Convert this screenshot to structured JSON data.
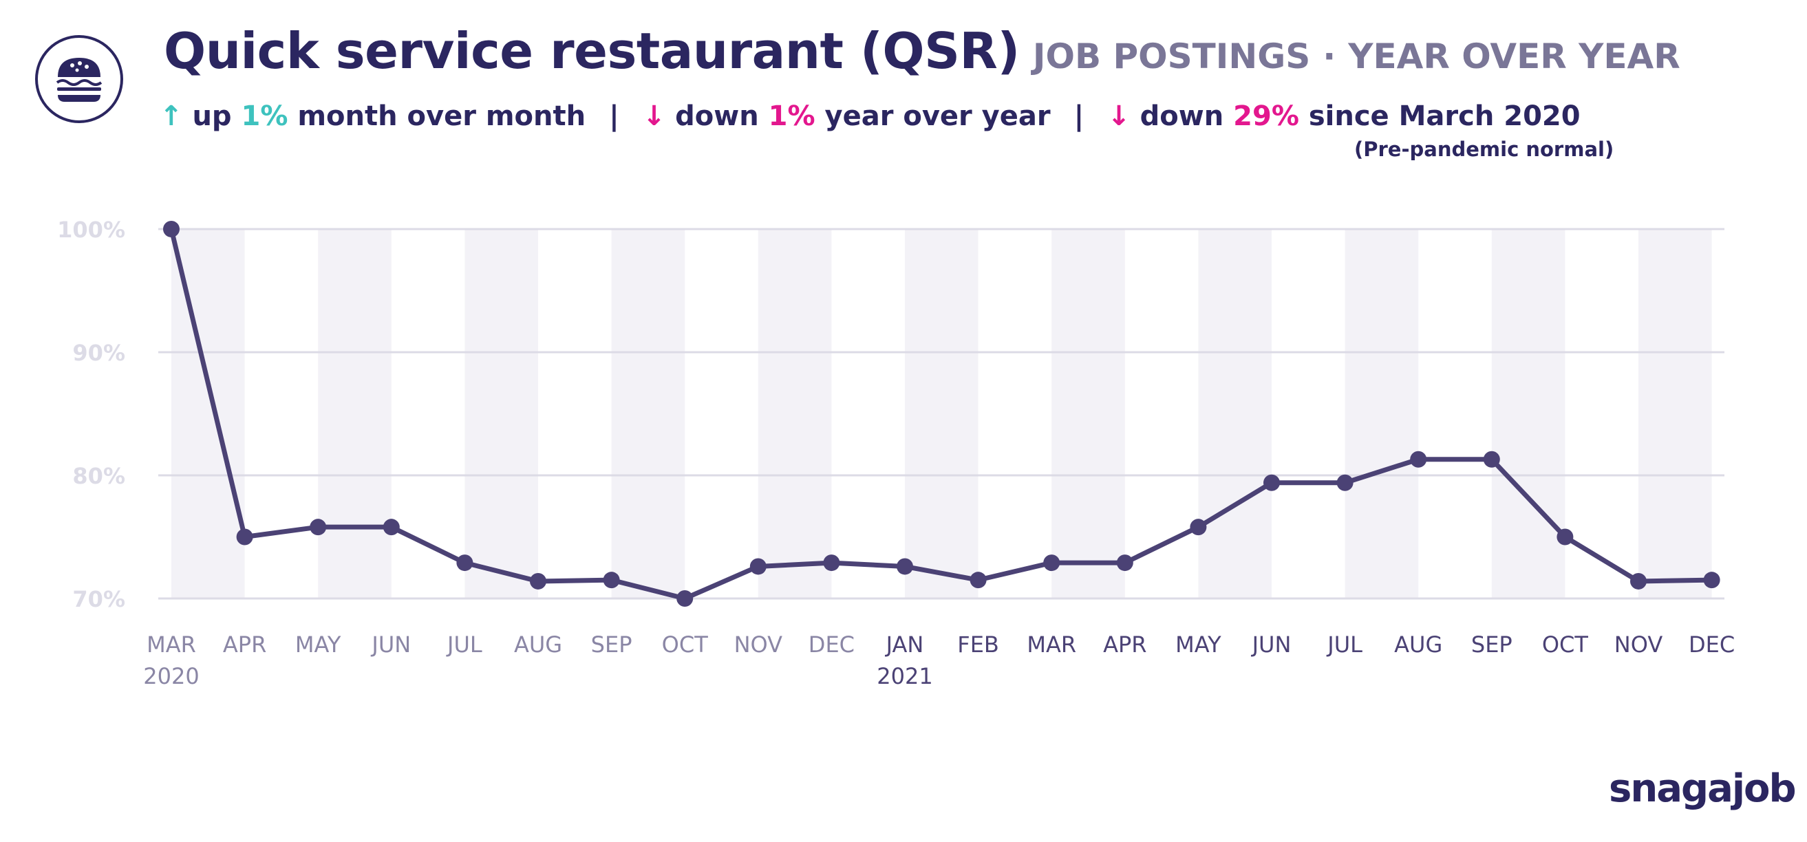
{
  "header": {
    "title": "Quick service restaurant (QSR)",
    "subtitle_1": "JOB POSTINGS",
    "subtitle_dot": "·",
    "subtitle_2": "YEAR OVER YEAR",
    "icon": "burger-icon"
  },
  "stats": {
    "mom": {
      "arrow": "↑",
      "pre": "up",
      "value": "1%",
      "post": "month over month"
    },
    "yoy": {
      "arrow": "↓",
      "pre": "down",
      "value": "1%",
      "post": "year over year"
    },
    "since": {
      "arrow": "↓",
      "pre": "down",
      "value": "29%",
      "post": "since March 2020"
    },
    "separator": "|",
    "note": "(Pre-pandemic normal)"
  },
  "colors": {
    "line": "#4b4275",
    "up": "#3ec2be",
    "down": "#e3178e",
    "band": "#f3f2f7",
    "grid": "#dcdbe6",
    "tick_light": "#dcdbe6",
    "month_old": "#8a86a5",
    "month_new": "#4b4275"
  },
  "chart_data": {
    "type": "line",
    "categories": [
      "MAR",
      "APR",
      "MAY",
      "JUN",
      "JUL",
      "AUG",
      "SEP",
      "OCT",
      "NOV",
      "DEC",
      "JAN",
      "FEB",
      "MAR",
      "APR",
      "MAY",
      "JUN",
      "JUL",
      "AUG",
      "SEP",
      "OCT",
      "NOV",
      "DEC"
    ],
    "years": [
      "2020",
      "",
      "",
      "",
      "",
      "",
      "",
      "",
      "",
      "",
      "2021",
      "",
      "",
      "",
      "",
      "",
      "",
      "",
      "",
      "",
      "",
      ""
    ],
    "values": [
      100,
      75,
      75.8,
      75.8,
      72.9,
      71.4,
      71.5,
      70,
      72.6,
      72.9,
      72.6,
      71.5,
      72.9,
      72.9,
      75.8,
      79.4,
      79.4,
      81.3,
      81.3,
      75,
      71.4,
      71.5
    ],
    "yticks": [
      100,
      90,
      80,
      70
    ],
    "ytick_labels": [
      "100%",
      "90%",
      "80%",
      "70%"
    ],
    "ylim": [
      70,
      100
    ],
    "grid": true,
    "title": "",
    "xlabel": "",
    "ylabel": ""
  },
  "brand": "snagajob"
}
